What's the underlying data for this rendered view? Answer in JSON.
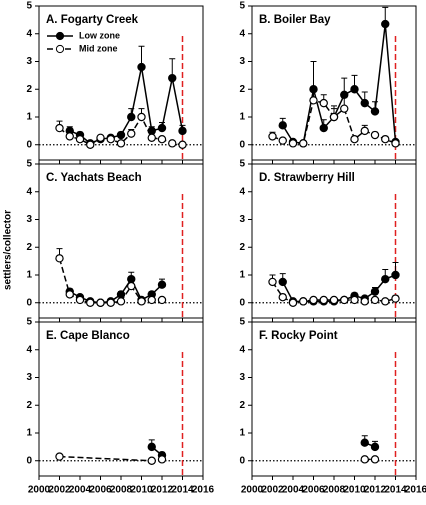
{
  "y_label": "settlers/collector",
  "error_bars": true,
  "chart_data": [
    {
      "type": "line",
      "title": "A. Fogarty Creek",
      "x": [
        2002,
        2003,
        2004,
        2005,
        2006,
        2007,
        2008,
        2009,
        2010,
        2011,
        2012,
        2013,
        2014
      ],
      "series": [
        {
          "name": "Low zone",
          "color": "#000000",
          "marker": "filled",
          "dash": false,
          "values": [
            null,
            0.5,
            0.35,
            0.05,
            0.2,
            0.25,
            0.35,
            1.0,
            2.8,
            0.5,
            0.6,
            2.4,
            0.5
          ],
          "errors": [
            null,
            0.15,
            0.1,
            0.05,
            0.05,
            0.05,
            0.1,
            0.3,
            0.75,
            0.15,
            0.2,
            0.7,
            0.2
          ]
        },
        {
          "name": "Mid zone",
          "color": "#000000",
          "marker": "open",
          "dash": true,
          "values": [
            0.6,
            0.3,
            0.2,
            0.0,
            0.25,
            0.2,
            0.05,
            0.4,
            1.0,
            0.25,
            0.2,
            0.05,
            0.0
          ],
          "errors": [
            0.25,
            0.15,
            0.05,
            0.02,
            0.05,
            0.05,
            0.05,
            0.15,
            0.3,
            0.1,
            0.05,
            0.05,
            0.02
          ]
        }
      ],
      "xlim": [
        2000,
        2016
      ],
      "xticks": [
        2000,
        2002,
        2004,
        2006,
        2008,
        2010,
        2012,
        2014,
        2016
      ],
      "ylim": [
        -0.55,
        5
      ],
      "yticks": [
        0,
        1,
        2,
        3,
        4,
        5
      ],
      "hline": 0,
      "vline": 2014,
      "vline_color": "#e02020",
      "legend": "upper left"
    },
    {
      "type": "line",
      "title": "B. Boiler Bay",
      "x": [
        2002,
        2003,
        2004,
        2005,
        2006,
        2007,
        2008,
        2009,
        2010,
        2011,
        2012,
        2013,
        2014
      ],
      "series": [
        {
          "color": "#000000",
          "marker": "filled",
          "dash": false,
          "values": [
            null,
            0.7,
            0.1,
            0.05,
            2.0,
            0.6,
            1.0,
            1.8,
            2.0,
            1.5,
            1.2,
            4.35,
            0.1
          ],
          "errors": [
            null,
            0.25,
            0.05,
            0.05,
            1.0,
            0.3,
            0.4,
            0.6,
            0.5,
            0.4,
            0.35,
            0.6,
            0.05
          ]
        },
        {
          "color": "#000000",
          "marker": "open",
          "dash": true,
          "values": [
            0.3,
            0.15,
            0.05,
            0.05,
            1.6,
            1.5,
            1.0,
            1.3,
            0.2,
            0.5,
            0.35,
            0.2,
            0.05
          ],
          "errors": [
            0.15,
            0.05,
            0.02,
            0.02,
            0.5,
            0.3,
            0.3,
            0.4,
            0.1,
            0.2,
            0.1,
            0.1,
            0.02
          ]
        }
      ],
      "xlim": [
        2000,
        2016
      ],
      "xticks": [
        2000,
        2002,
        2004,
        2006,
        2008,
        2010,
        2012,
        2014,
        2016
      ],
      "ylim": [
        -0.55,
        5
      ],
      "yticks": [
        0,
        1,
        2,
        3,
        4,
        5
      ],
      "hline": 0,
      "vline": 2014,
      "vline_color": "#e02020"
    },
    {
      "type": "line",
      "title": "C. Yachats Beach",
      "x": [
        2002,
        2003,
        2004,
        2005,
        2006,
        2007,
        2008,
        2009,
        2010,
        2011,
        2012
      ],
      "series": [
        {
          "color": "#000000",
          "marker": "filled",
          "dash": false,
          "values": [
            null,
            0.4,
            0.2,
            0.05,
            0.0,
            0.05,
            0.3,
            0.85,
            0.1,
            0.3,
            0.65
          ],
          "errors": [
            null,
            0.1,
            0.05,
            0.02,
            0.02,
            0.05,
            0.1,
            0.25,
            0.05,
            0.1,
            0.2
          ]
        },
        {
          "color": "#000000",
          "marker": "open",
          "dash": true,
          "values": [
            1.6,
            0.3,
            0.1,
            0.0,
            0.0,
            0.0,
            0.05,
            0.6,
            0.05,
            0.1,
            0.1
          ],
          "errors": [
            0.35,
            0.1,
            0.05,
            0.02,
            0.02,
            0.02,
            0.05,
            0.2,
            0.05,
            0.05,
            0.05
          ]
        }
      ],
      "xlim": [
        2000,
        2016
      ],
      "xticks": [
        2000,
        2002,
        2004,
        2006,
        2008,
        2010,
        2012,
        2014,
        2016
      ],
      "ylim": [
        -0.55,
        5
      ],
      "yticks": [
        0,
        1,
        2,
        3,
        4,
        5
      ],
      "hline": 0,
      "vline": 2014,
      "vline_color": "#e02020"
    },
    {
      "type": "line",
      "title": "D. Strawberry Hill",
      "x": [
        2002,
        2003,
        2004,
        2005,
        2006,
        2007,
        2008,
        2009,
        2010,
        2011,
        2012,
        2013,
        2014
      ],
      "series": [
        {
          "color": "#000000",
          "marker": "filled",
          "dash": false,
          "values": [
            null,
            0.75,
            0.05,
            0.05,
            0.05,
            0.05,
            0.05,
            0.1,
            0.25,
            0.15,
            0.4,
            0.85,
            1.0
          ],
          "errors": [
            null,
            0.3,
            0.05,
            0.02,
            0.02,
            0.02,
            0.05,
            0.05,
            0.1,
            0.05,
            0.15,
            0.35,
            0.45
          ]
        },
        {
          "color": "#000000",
          "marker": "open",
          "dash": true,
          "values": [
            0.75,
            0.2,
            0.0,
            0.05,
            0.1,
            0.1,
            0.1,
            0.1,
            0.1,
            0.05,
            0.1,
            0.05,
            0.15
          ],
          "errors": [
            0.25,
            0.1,
            0.02,
            0.02,
            0.05,
            0.05,
            0.05,
            0.05,
            0.05,
            0.02,
            0.05,
            0.02,
            0.1
          ]
        }
      ],
      "xlim": [
        2000,
        2016
      ],
      "xticks": [
        2000,
        2002,
        2004,
        2006,
        2008,
        2010,
        2012,
        2014,
        2016
      ],
      "ylim": [
        -0.55,
        5
      ],
      "yticks": [
        0,
        1,
        2,
        3,
        4,
        5
      ],
      "hline": 0,
      "vline": 2014,
      "vline_color": "#e02020"
    },
    {
      "type": "line",
      "title": "E. Cape Blanco",
      "x": [
        2002,
        2011,
        2012
      ],
      "series": [
        {
          "color": "#000000",
          "marker": "filled",
          "dash": false,
          "values": [
            null,
            0.5,
            0.2
          ],
          "errors": [
            null,
            0.25,
            0.1
          ]
        },
        {
          "color": "#000000",
          "marker": "open",
          "dash": true,
          "values": [
            0.15,
            0.0,
            0.05
          ],
          "errors": [
            0.05,
            0.02,
            0.02
          ]
        }
      ],
      "xlim": [
        2000,
        2016
      ],
      "xticks": [
        2000,
        2002,
        2004,
        2006,
        2008,
        2010,
        2012,
        2014,
        2016
      ],
      "ylim": [
        -0.55,
        5
      ],
      "yticks": [
        0,
        1,
        2,
        3,
        4,
        5
      ],
      "hline": 0,
      "vline": 2014,
      "vline_color": "#e02020"
    },
    {
      "type": "line",
      "title": "F. Rocky Point",
      "x": [
        2011,
        2012
      ],
      "series": [
        {
          "color": "#000000",
          "marker": "filled",
          "dash": false,
          "values": [
            0.65,
            0.5
          ],
          "errors": [
            0.25,
            0.2
          ]
        },
        {
          "color": "#000000",
          "marker": "open",
          "dash": true,
          "values": [
            0.05,
            0.05
          ],
          "errors": [
            0.02,
            0.02
          ]
        }
      ],
      "xlim": [
        2000,
        2016
      ],
      "xticks": [
        2000,
        2002,
        2004,
        2006,
        2008,
        2010,
        2012,
        2014,
        2016
      ],
      "ylim": [
        -0.55,
        5
      ],
      "yticks": [
        0,
        1,
        2,
        3,
        4,
        5
      ],
      "hline": 0,
      "vline": 2014,
      "vline_color": "#e02020"
    }
  ]
}
